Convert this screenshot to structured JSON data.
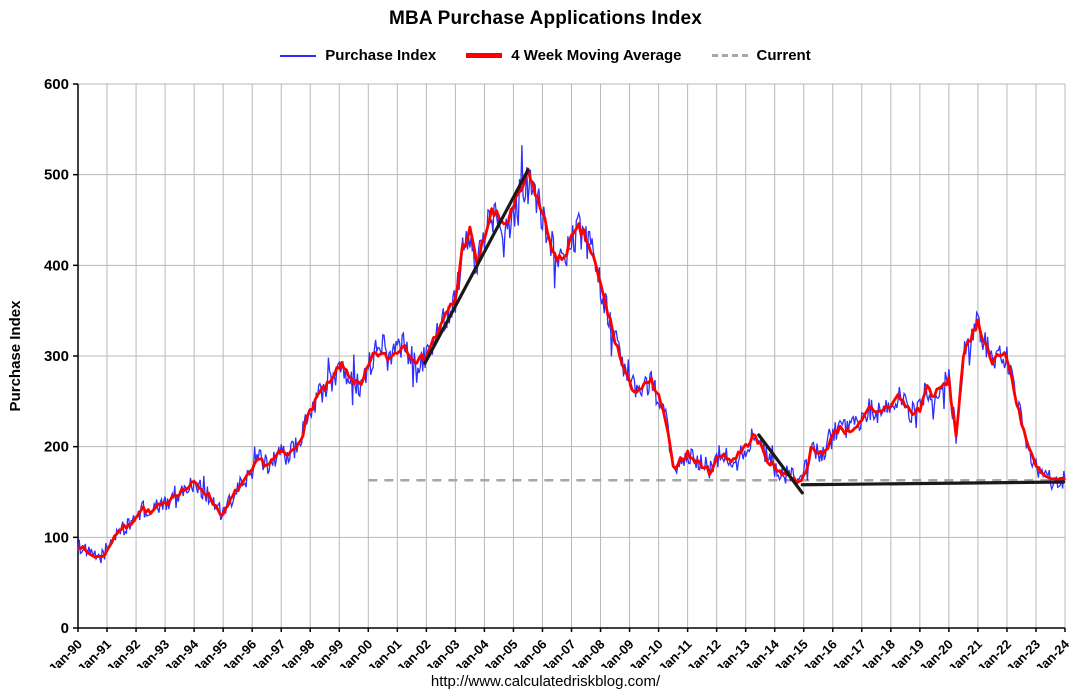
{
  "footer": {
    "url": "http://www.calculatedriskblog.com/"
  },
  "chart_data": {
    "type": "line",
    "title": "MBA Purchase Applications Index",
    "xlabel": "",
    "ylabel": "Purchase Index",
    "ylim": [
      0,
      600
    ],
    "xlim": [
      1990,
      2024.2
    ],
    "yticks": [
      0,
      100,
      200,
      300,
      400,
      500,
      600
    ],
    "grid": true,
    "legend_position": "top",
    "x_ticks": [
      "Jan-90",
      "Jan-91",
      "Jan-92",
      "Jan-93",
      "Jan-94",
      "Jan-95",
      "Jan-96",
      "Jan-97",
      "Jan-98",
      "Jan-99",
      "Jan-00",
      "Jan-01",
      "Jan-02",
      "Jan-03",
      "Jan-04",
      "Jan-05",
      "Jan-06",
      "Jan-07",
      "Jan-08",
      "Jan-09",
      "Jan-10",
      "Jan-11",
      "Jan-12",
      "Jan-13",
      "Jan-14",
      "Jan-15",
      "Jan-16",
      "Jan-17",
      "Jan-18",
      "Jan-19",
      "Jan-20",
      "Jan-21",
      "Jan-22",
      "Jan-23",
      "Jan-24"
    ],
    "legend": [
      {
        "label": "Purchase Index",
        "color": "#2e2eff",
        "style": "thin"
      },
      {
        "label": "4 Week Moving Average",
        "color": "#ff0000",
        "style": "thick"
      },
      {
        "label": "Current",
        "color": "#a6a6a6",
        "style": "dashed"
      }
    ],
    "series": [
      {
        "name": "4 Week Moving Average",
        "x_start": 1990,
        "x_step": 0.25,
        "values": [
          92,
          85,
          80,
          78,
          84,
          102,
          110,
          112,
          124,
          132,
          126,
          134,
          136,
          146,
          150,
          154,
          160,
          154,
          146,
          134,
          124,
          140,
          154,
          162,
          174,
          186,
          180,
          186,
          194,
          190,
          200,
          216,
          240,
          256,
          264,
          272,
          290,
          284,
          272,
          266,
          288,
          304,
          300,
          298,
          306,
          312,
          300,
          294,
          302,
          318,
          332,
          350,
          362,
          420,
          438,
          400,
          432,
          458,
          452,
          446,
          462,
          482,
          500,
          482,
          456,
          430,
          402,
          412,
          428,
          440,
          430,
          408,
          378,
          348,
          318,
          290,
          268,
          262,
          266,
          272,
          254,
          228,
          176,
          186,
          192,
          184,
          180,
          172,
          186,
          192,
          184,
          192,
          200,
          212,
          202,
          186,
          176,
          172,
          168,
          162,
          166,
          196,
          192,
          196,
          212,
          222,
          216,
          222,
          226,
          242,
          236,
          242,
          246,
          256,
          246,
          236,
          242,
          266,
          256,
          266,
          272,
          212,
          302,
          316,
          340,
          312,
          296,
          302,
          298,
          262,
          228,
          198,
          178,
          168,
          164,
          162,
          163
        ]
      }
    ],
    "noise": {
      "seed": 1234,
      "base_amplitude": 11
    },
    "current_line": {
      "x1": 2000.0,
      "x2": 2024.1,
      "y": 163
    },
    "trend_lines": [
      {
        "x1": 2001.95,
        "y1": 292,
        "x2": 2005.5,
        "y2": 505
      },
      {
        "x1": 2013.45,
        "y1": 213,
        "x2": 2014.95,
        "y2": 149
      },
      {
        "x1": 2014.95,
        "y1": 158,
        "x2": 2023.95,
        "y2": 161
      }
    ]
  }
}
